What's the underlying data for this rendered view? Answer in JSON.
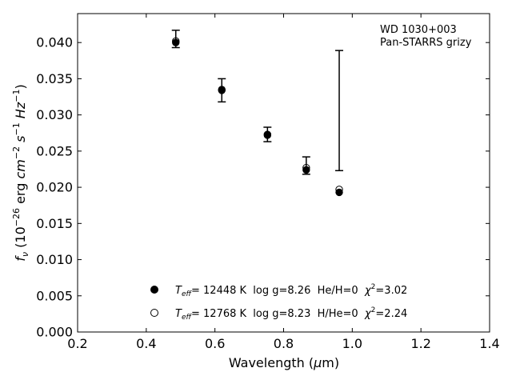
{
  "chart_data": {
    "type": "scatter",
    "title": "",
    "xlabel": "Wavelength (μm)",
    "ylabel": "f_ν (10^-26 erg cm^-2 s^-1 Hz^-1)",
    "xlim": [
      0.2,
      1.4
    ],
    "ylim": [
      0.0,
      0.044
    ],
    "xticks": [
      0.2,
      0.4,
      0.6,
      0.8,
      1.0,
      1.2,
      1.4
    ],
    "xtick_labels": [
      "0.2",
      "0.4",
      "0.6",
      "0.8",
      "1.0",
      "1.2",
      "1.4"
    ],
    "yticks": [
      0.0,
      0.005,
      0.01,
      0.015,
      0.02,
      0.025,
      0.03,
      0.035,
      0.04
    ],
    "ytick_labels": [
      "0.000",
      "0.005",
      "0.010",
      "0.015",
      "0.020",
      "0.025",
      "0.030",
      "0.035",
      "0.040"
    ],
    "grid": false,
    "annotation": [
      "WD 1030+003",
      "Pan-STARRS grizy"
    ],
    "observed": {
      "x": [
        0.486,
        0.62,
        0.753,
        0.866,
        0.962
      ],
      "y": [
        0.0405,
        0.0334,
        0.0273,
        0.023,
        0.0306
      ],
      "err": [
        0.0012,
        0.0016,
        0.001,
        0.0012,
        0.0083
      ]
    },
    "series": [
      {
        "name": "Teff= 12448 K  log g=8.26  He/H=0  χ²=3.02",
        "marker": "filled-circle",
        "x": [
          0.486,
          0.62,
          0.753,
          0.866,
          0.962
        ],
        "y": [
          0.04,
          0.0334,
          0.0272,
          0.0224,
          0.0193
        ]
      },
      {
        "name": "Teff= 12768 K  log g=8.23  H/He=0  χ²=2.24",
        "marker": "open-circle",
        "x": [
          0.486,
          0.62,
          0.753,
          0.866,
          0.962
        ],
        "y": [
          0.0402,
          0.0335,
          0.0273,
          0.0227,
          0.0197
        ]
      }
    ],
    "legend": {
      "placement": "lower-center",
      "entries": [
        {
          "marker": "filled-circle",
          "teff_label": "T",
          "teff_sub": "eff",
          "rest": "= 12448 K  log g=8.26  He/H=0  ",
          "chi": "χ",
          "chi_sup": "2",
          "chi_val": "=3.02"
        },
        {
          "marker": "open-circle",
          "teff_label": "T",
          "teff_sub": "eff",
          "rest": "= 12768 K  log g=8.23  H/He=0  ",
          "chi": "χ",
          "chi_sup": "2",
          "chi_val": "=2.24"
        }
      ]
    },
    "colors": {
      "marker": "#000000",
      "axis": "#000000",
      "background": "#ffffff"
    }
  }
}
